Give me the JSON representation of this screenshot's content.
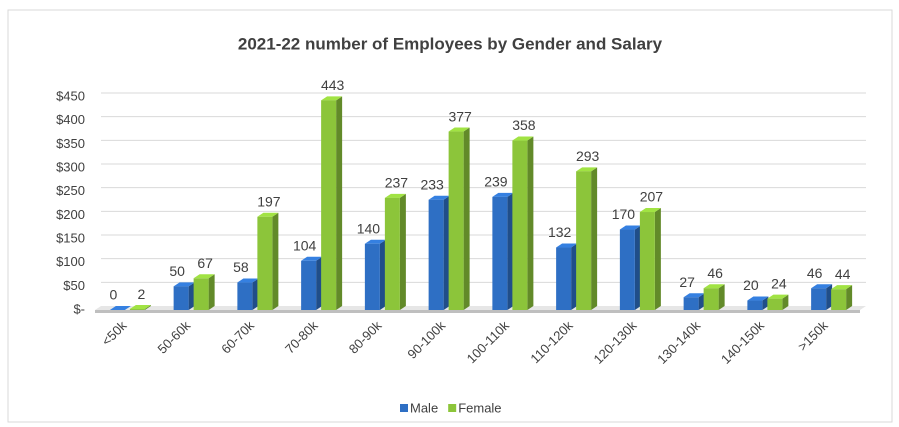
{
  "chart_data": {
    "type": "bar",
    "title": "2021-22 number of Employees by Gender and Salary",
    "categories": [
      "<50k",
      "50-60k",
      "60-70k",
      "70-80k",
      "80-90k",
      "90-100k",
      "100-110k",
      "110-120k",
      "120-130k",
      "130-140k",
      "140-150k",
      ">150k"
    ],
    "series": [
      {
        "name": "Male",
        "color": "#2e6fc4",
        "values": [
          0,
          50,
          58,
          104,
          140,
          233,
          239,
          132,
          170,
          27,
          20,
          46
        ]
      },
      {
        "name": "Female",
        "color": "#8cc53a",
        "values": [
          2,
          67,
          197,
          443,
          237,
          377,
          358,
          293,
          207,
          46,
          24,
          44
        ]
      }
    ],
    "ylim": [
      0,
      450
    ],
    "yticks": [
      {
        "value": 0,
        "label": "$-"
      },
      {
        "value": 50,
        "label": "$50"
      },
      {
        "value": 100,
        "label": "$100"
      },
      {
        "value": 150,
        "label": "$150"
      },
      {
        "value": 200,
        "label": "$200"
      },
      {
        "value": 250,
        "label": "$250"
      },
      {
        "value": 300,
        "label": "$300"
      },
      {
        "value": 350,
        "label": "$350"
      },
      {
        "value": 400,
        "label": "$400"
      },
      {
        "value": 450,
        "label": "$450"
      }
    ],
    "grid": true,
    "legend": "bottom"
  }
}
